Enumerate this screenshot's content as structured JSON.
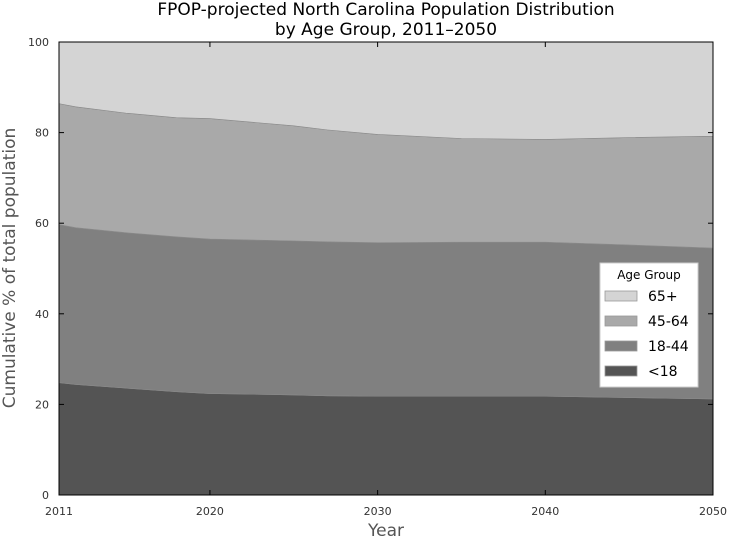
{
  "chart_data": {
    "type": "area",
    "stacked": true,
    "title_lines": [
      "FPOP-projected North Carolina Population Distribution",
      "by Age Group, 2011–2050"
    ],
    "xlabel": "Year",
    "ylabel": "Cumulative % of total population",
    "xlim": [
      2011,
      2050
    ],
    "ylim": [
      0,
      100
    ],
    "x_ticks": [
      "2011",
      "2020",
      "2030",
      "2040",
      "2050"
    ],
    "y_ticks": [
      "0",
      "20",
      "40",
      "60",
      "80",
      "100"
    ],
    "x": [
      2011,
      2012,
      2015,
      2018,
      2020,
      2025,
      2027,
      2030,
      2035,
      2040,
      2045,
      2050
    ],
    "series": [
      {
        "name": "<18",
        "color": "#545454",
        "values": [
          24.8,
          24.4,
          23.6,
          22.8,
          22.4,
          22.1,
          21.9,
          21.8,
          21.8,
          21.8,
          21.5,
          21.2
        ]
      },
      {
        "name": "18-44",
        "color": "#808080",
        "values": [
          34.9,
          34.6,
          34.3,
          34.2,
          34.1,
          34.0,
          34.0,
          33.9,
          34.0,
          34.0,
          33.7,
          33.3
        ]
      },
      {
        "name": "45-64",
        "color": "#a9a9a9",
        "values": [
          26.7,
          26.7,
          26.4,
          26.3,
          26.6,
          25.4,
          24.7,
          23.9,
          22.9,
          22.7,
          23.7,
          24.7
        ]
      },
      {
        "name": "65+",
        "color": "#d4d4d4",
        "values": [
          13.6,
          14.3,
          15.7,
          16.7,
          16.9,
          18.5,
          19.4,
          20.4,
          21.3,
          21.5,
          21.1,
          20.8
        ]
      }
    ],
    "legend": {
      "title": "Age Group",
      "placement": "right",
      "order": [
        "65+",
        "45-64",
        "18-44",
        "<18"
      ]
    },
    "grid": false
  }
}
